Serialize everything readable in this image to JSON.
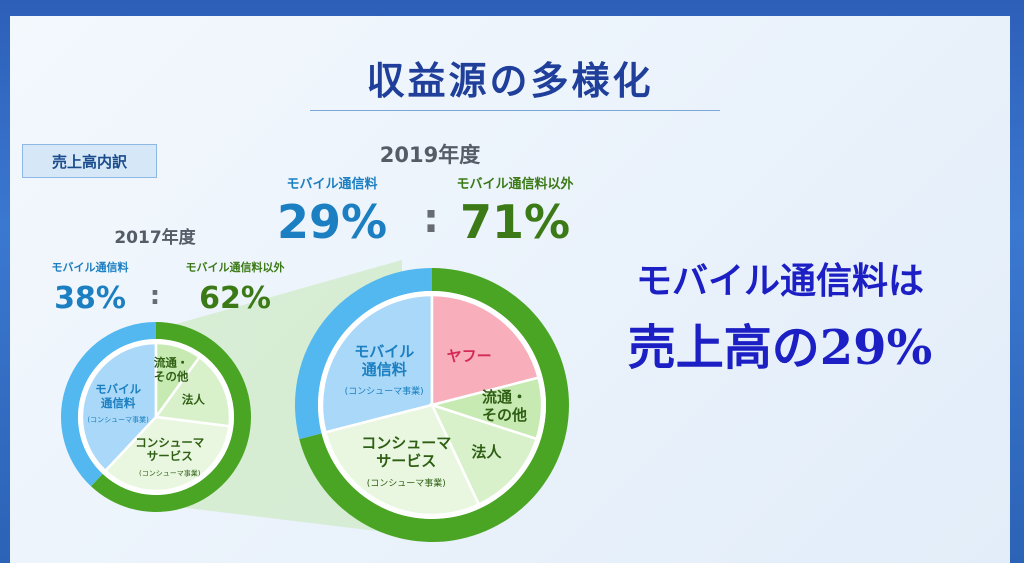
{
  "slide": {
    "title": "収益源の多様化",
    "badge": "売上高内訳",
    "headline_line1": "モバイル通信料は",
    "headline_line2": "売上高の29%"
  },
  "colors": {
    "title": "#1f3f9a",
    "mobile_blue": "#1b7fc1",
    "other_green": "#3c7a17",
    "outer_blue": "#53b7f0",
    "outer_green": "#4aa524",
    "yahoo_pink": "#f8aebb",
    "headline": "#1b1fc4"
  },
  "chart_data": [
    {
      "type": "pie",
      "title": "2017年度",
      "ratio_labels": [
        {
          "label": "モバイル通信料",
          "value": "38%"
        },
        {
          "label": "モバイル通信料以外",
          "value": "62%"
        }
      ],
      "separator": ":",
      "outer_ring": [
        {
          "label": "モバイル通信料",
          "value": 38
        },
        {
          "label": "モバイル通信料以外",
          "value": 62
        }
      ],
      "inner_slices": [
        {
          "label": "モバイル通信料",
          "sublabel": "(コンシューマ事業)",
          "value": 38
        },
        {
          "label": "流通・その他",
          "value": 10
        },
        {
          "label": "法人",
          "value": 17
        },
        {
          "label": "コンシューマサービス",
          "sublabel": "(コンシューマ事業)",
          "value": 35
        }
      ]
    },
    {
      "type": "pie",
      "title": "2019年度",
      "ratio_labels": [
        {
          "label": "モバイル通信料",
          "value": "29%"
        },
        {
          "label": "モバイル通信料以外",
          "value": "71%"
        }
      ],
      "separator": ":",
      "outer_ring": [
        {
          "label": "モバイル通信料",
          "value": 29
        },
        {
          "label": "モバイル通信料以外",
          "value": 71
        }
      ],
      "inner_slices": [
        {
          "label": "モバイル通信料",
          "sublabel": "(コンシューマ事業)",
          "value": 29
        },
        {
          "label": "ヤフー",
          "value": 21
        },
        {
          "label": "流通・その他",
          "value": 9
        },
        {
          "label": "法人",
          "value": 13
        },
        {
          "label": "コンシューマサービス",
          "sublabel": "(コンシューマ事業)",
          "value": 28
        }
      ]
    }
  ]
}
